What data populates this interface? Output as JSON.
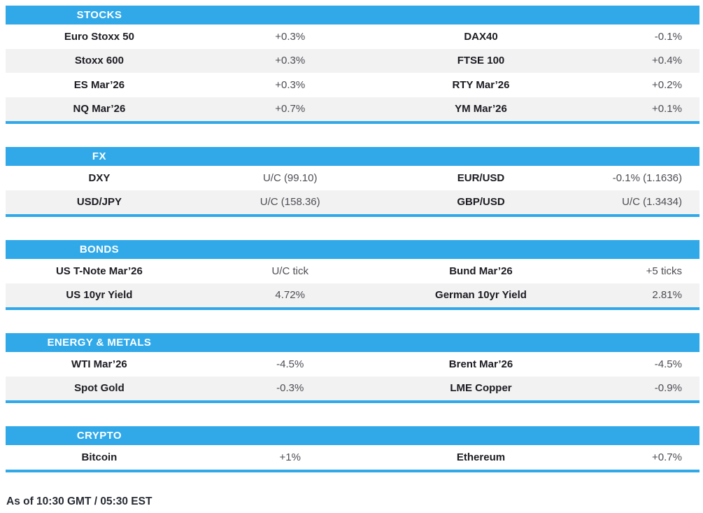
{
  "accent_color": "#31A9E9",
  "alt_row_color": "#F2F2F2",
  "footer": "As of 10:30 GMT / 05:30 EST",
  "sections": [
    {
      "title": "STOCKS",
      "rows": [
        {
          "l1": "Euro Stoxx 50",
          "v1": "+0.3%",
          "l2": "DAX40",
          "v2": "-0.1%"
        },
        {
          "l1": "Stoxx 600",
          "v1": "+0.3%",
          "l2": "FTSE 100",
          "v2": "+0.4%"
        },
        {
          "l1": "ES Mar’26",
          "v1": "+0.3%",
          "l2": "RTY Mar’26",
          "v2": "+0.2%"
        },
        {
          "l1": "NQ Mar’26",
          "v1": "+0.7%",
          "l2": "YM Mar’26",
          "v2": "+0.1%"
        }
      ]
    },
    {
      "title": "FX",
      "rows": [
        {
          "l1": "DXY",
          "v1": "U/C (99.10)",
          "l2": "EUR/USD",
          "v2": "-0.1% (1.1636)"
        },
        {
          "l1": "USD/JPY",
          "v1": "U/C (158.36)",
          "l2": "GBP/USD",
          "v2": "U/C (1.3434)"
        }
      ]
    },
    {
      "title": "BONDS",
      "rows": [
        {
          "l1": "US T-Note Mar’26",
          "v1": "U/C tick",
          "l2": "Bund Mar’26",
          "v2": "+5 ticks"
        },
        {
          "l1": "US 10yr Yield",
          "v1": "4.72%",
          "l2": "German 10yr Yield",
          "v2": "2.81%"
        }
      ]
    },
    {
      "title": "ENERGY & METALS",
      "rows": [
        {
          "l1": "WTI Mar’26",
          "v1": "-4.5%",
          "l2": "Brent Mar’26",
          "v2": "-4.5%"
        },
        {
          "l1": "Spot Gold",
          "v1": "-0.3%",
          "l2": "LME Copper",
          "v2": "-0.9%"
        }
      ]
    },
    {
      "title": "CRYPTO",
      "rows": [
        {
          "l1": "Bitcoin",
          "v1": "+1%",
          "l2": "Ethereum",
          "v2": "+0.7%"
        }
      ]
    }
  ]
}
